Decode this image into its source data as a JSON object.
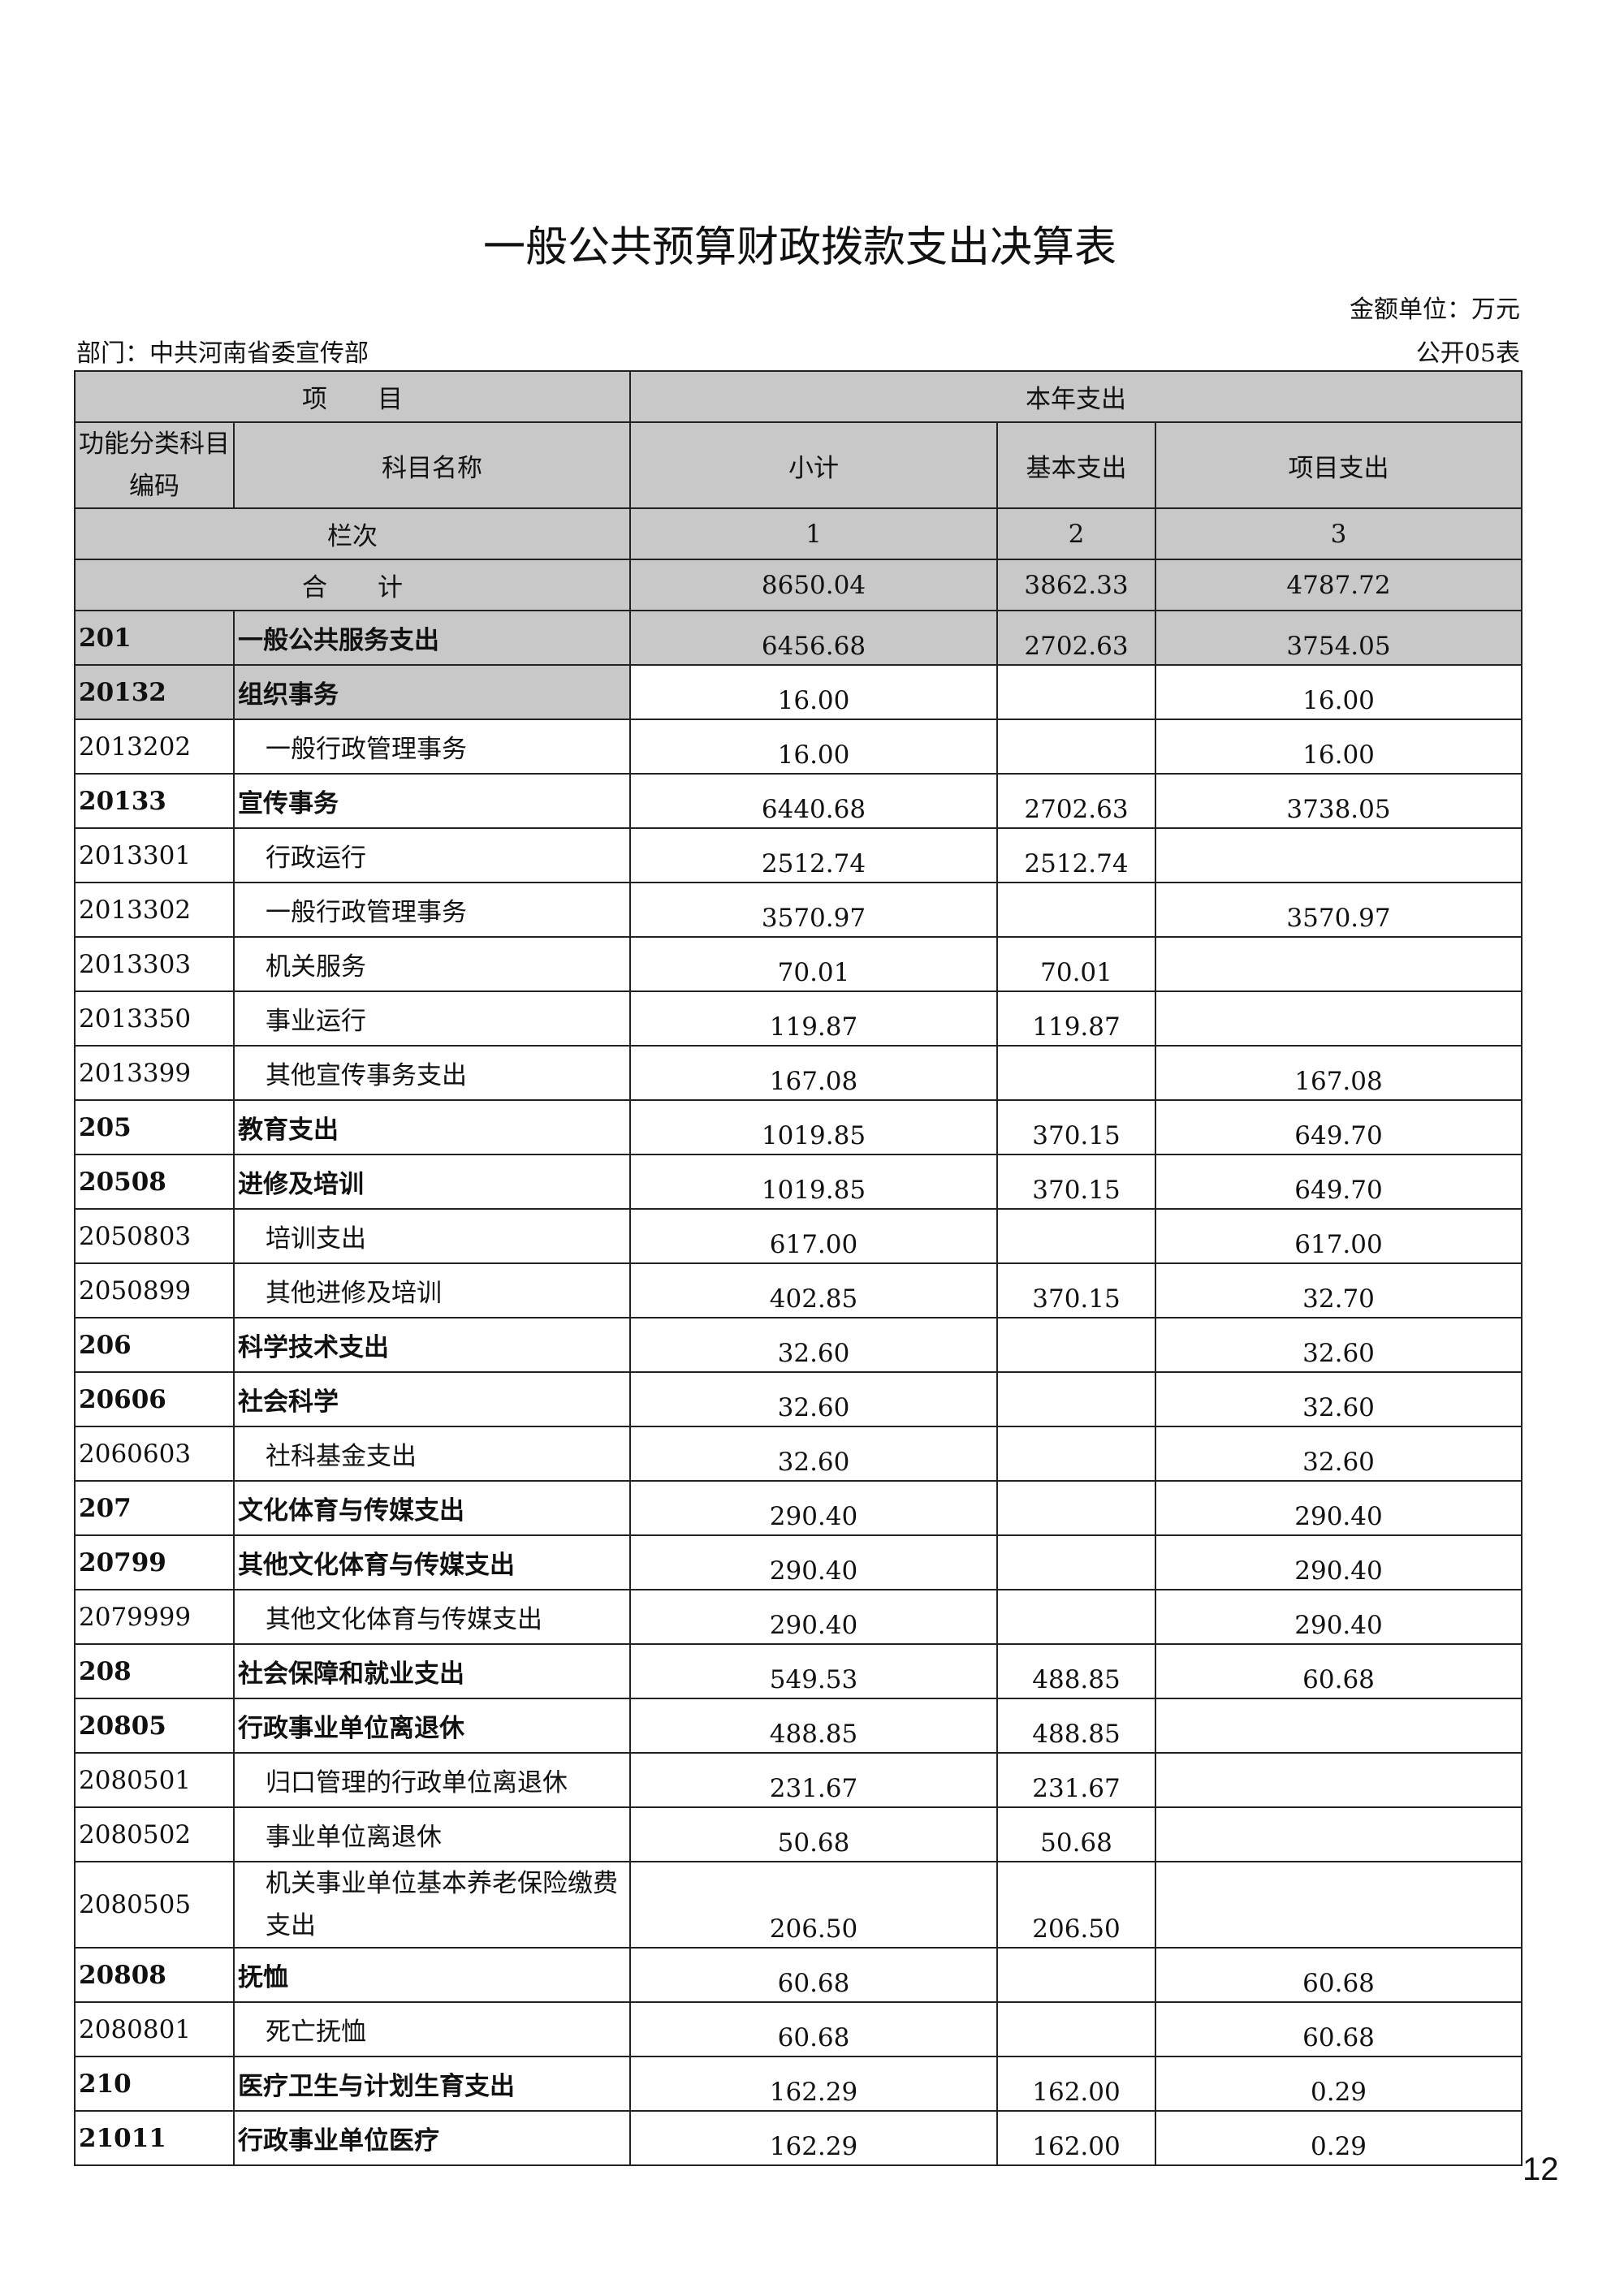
{
  "title": "一般公共预算财政拨款支出决算表",
  "unit": "金额单位：万元",
  "department": "部门：中共河南省委宣传部",
  "form_no": "公开05表",
  "header": {
    "item": "项　　目",
    "year_expense": "本年支出",
    "code": "功能分类科目编码",
    "name": "科目名称",
    "subtotal": "小计",
    "basic": "基本支出",
    "project": "项目支出",
    "col_label": "栏次",
    "col1": "1",
    "col2": "2",
    "col3": "3",
    "total_label": "合　　计",
    "total": [
      "8650.04",
      "3862.33",
      "4787.72"
    ]
  },
  "rows": [
    {
      "code": "201",
      "name": "一般公共服务支出",
      "values": [
        "6456.68",
        "2702.63",
        "3754.05"
      ]
    },
    {
      "code": "20132",
      "name": "组织事务",
      "values": [
        "16.00",
        "",
        "16.00"
      ]
    },
    {
      "code": "2013202",
      "name": "一般行政管理事务",
      "values": [
        "16.00",
        "",
        "16.00"
      ]
    },
    {
      "code": "20133",
      "name": "宣传事务",
      "values": [
        "6440.68",
        "2702.63",
        "3738.05"
      ]
    },
    {
      "code": "2013301",
      "name": "行政运行",
      "values": [
        "2512.74",
        "2512.74",
        ""
      ]
    },
    {
      "code": "2013302",
      "name": "一般行政管理事务",
      "values": [
        "3570.97",
        "",
        "3570.97"
      ]
    },
    {
      "code": "2013303",
      "name": "机关服务",
      "values": [
        "70.01",
        "70.01",
        ""
      ]
    },
    {
      "code": "2013350",
      "name": "事业运行",
      "values": [
        "119.87",
        "119.87",
        ""
      ]
    },
    {
      "code": "2013399",
      "name": "其他宣传事务支出",
      "values": [
        "167.08",
        "",
        "167.08"
      ]
    },
    {
      "code": "205",
      "name": "教育支出",
      "values": [
        "1019.85",
        "370.15",
        "649.70"
      ]
    },
    {
      "code": "20508",
      "name": "进修及培训",
      "values": [
        "1019.85",
        "370.15",
        "649.70"
      ]
    },
    {
      "code": "2050803",
      "name": "培训支出",
      "values": [
        "617.00",
        "",
        "617.00"
      ]
    },
    {
      "code": "2050899",
      "name": "其他进修及培训",
      "values": [
        "402.85",
        "370.15",
        "32.70"
      ]
    },
    {
      "code": "206",
      "name": "科学技术支出",
      "values": [
        "32.60",
        "",
        "32.60"
      ]
    },
    {
      "code": "20606",
      "name": "社会科学",
      "values": [
        "32.60",
        "",
        "32.60"
      ]
    },
    {
      "code": "2060603",
      "name": "社科基金支出",
      "values": [
        "32.60",
        "",
        "32.60"
      ]
    },
    {
      "code": "207",
      "name": "文化体育与传媒支出",
      "values": [
        "290.40",
        "",
        "290.40"
      ]
    },
    {
      "code": "20799",
      "name": "其他文化体育与传媒支出",
      "values": [
        "290.40",
        "",
        "290.40"
      ]
    },
    {
      "code": "2079999",
      "name": "其他文化体育与传媒支出",
      "values": [
        "290.40",
        "",
        "290.40"
      ]
    },
    {
      "code": "208",
      "name": "社会保障和就业支出",
      "values": [
        "549.53",
        "488.85",
        "60.68"
      ]
    },
    {
      "code": "20805",
      "name": "行政事业单位离退休",
      "values": [
        "488.85",
        "488.85",
        ""
      ]
    },
    {
      "code": "2080501",
      "name": "归口管理的行政单位离退休",
      "values": [
        "231.67",
        "231.67",
        ""
      ]
    },
    {
      "code": "2080502",
      "name": "事业单位离退休",
      "values": [
        "50.68",
        "50.68",
        ""
      ]
    },
    {
      "code": "2080505",
      "name": "机关事业单位基本养老保险缴费支出",
      "values": [
        "206.50",
        "206.50",
        ""
      ]
    },
    {
      "code": "20808",
      "name": "抚恤",
      "values": [
        "60.68",
        "",
        "60.68"
      ]
    },
    {
      "code": "2080801",
      "name": "死亡抚恤",
      "values": [
        "60.68",
        "",
        "60.68"
      ]
    },
    {
      "code": "210",
      "name": "医疗卫生与计划生育支出",
      "values": [
        "162.29",
        "162.00",
        "0.29"
      ]
    },
    {
      "code": "21011",
      "name": "行政事业单位医疗",
      "values": [
        "162.29",
        "162.00",
        "0.29"
      ]
    }
  ],
  "page_number": "12"
}
